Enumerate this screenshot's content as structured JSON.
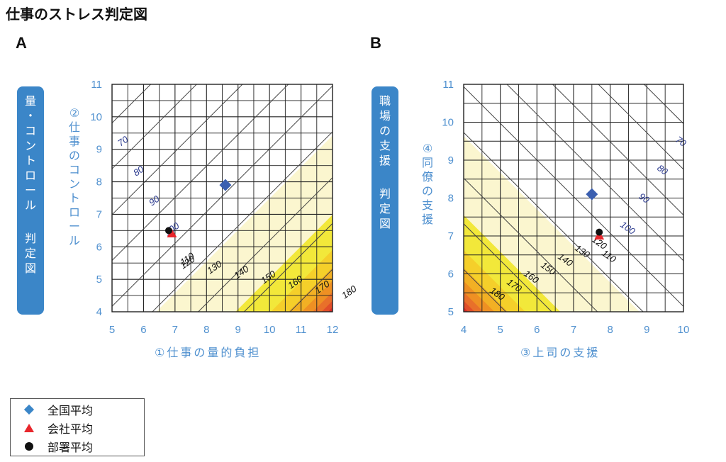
{
  "title": "仕事のストレス判定図",
  "legend": [
    {
      "label": "全国平均",
      "marker": "diamond",
      "color": "#3b86c8"
    },
    {
      "label": "会社平均",
      "marker": "triangle",
      "color": "#e8262c"
    },
    {
      "label": "部署平均",
      "marker": "circle",
      "color": "#111111"
    }
  ],
  "chart_data": [
    {
      "type": "scatter",
      "panel": "A",
      "title": "",
      "badge": [
        "量",
        "・",
        "コ",
        "ン",
        "ト",
        "ロ",
        "ー",
        "ル",
        "",
        "判",
        "定",
        "図"
      ],
      "xlabel": "①仕事の量的負担",
      "ylabel": [
        "②",
        "仕",
        "事",
        "の",
        "コ",
        "ン",
        "ト",
        "ロ",
        "ー",
        "ル"
      ],
      "xlim": [
        5,
        12
      ],
      "ylim": [
        4,
        11
      ],
      "xticks": [
        "5",
        "6",
        "7",
        "8",
        "9",
        "10",
        "11",
        "12"
      ],
      "yticks": [
        "4",
        "5",
        "6",
        "7",
        "8",
        "9",
        "10",
        "11"
      ],
      "grid": true,
      "contour_labels": [
        "70",
        "80",
        "90",
        "100",
        "110",
        "120",
        "130",
        "140",
        "150",
        "160",
        "170",
        "180"
      ],
      "points": [
        {
          "series": "全国平均",
          "x": 8.6,
          "y": 7.9
        },
        {
          "series": "会社平均",
          "x": 6.9,
          "y": 6.4
        },
        {
          "series": "部署平均",
          "x": 6.8,
          "y": 6.5
        }
      ]
    },
    {
      "type": "scatter",
      "panel": "B",
      "title": "",
      "badge": [
        "職",
        "場",
        "の",
        "支",
        "援",
        "",
        "判",
        "定",
        "図"
      ],
      "xlabel": "③上司の支援",
      "ylabel": [
        "④",
        "同",
        "僚",
        "の",
        "支",
        "援"
      ],
      "xlim": [
        4,
        10
      ],
      "ylim": [
        5,
        11
      ],
      "xticks": [
        "4",
        "5",
        "6",
        "7",
        "8",
        "9",
        "10"
      ],
      "yticks": [
        "5",
        "6",
        "7",
        "8",
        "9",
        "10",
        "11"
      ],
      "grid": true,
      "contour_labels": [
        "70",
        "80",
        "90",
        "100",
        "110",
        "120",
        "130",
        "140",
        "150",
        "160",
        "170",
        "180"
      ],
      "points": [
        {
          "series": "全国平均",
          "x": 7.5,
          "y": 8.1
        },
        {
          "series": "会社平均",
          "x": 7.7,
          "y": 7.0
        },
        {
          "series": "部署平均",
          "x": 7.7,
          "y": 7.1
        }
      ]
    }
  ]
}
